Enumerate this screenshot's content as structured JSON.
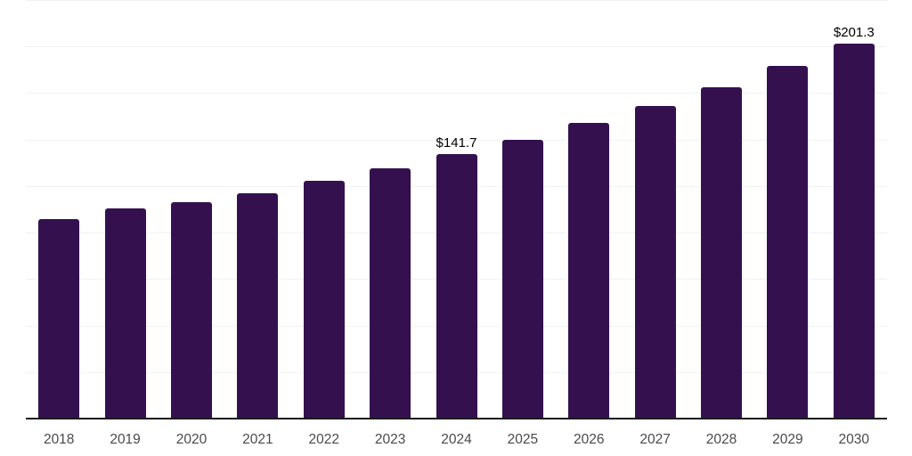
{
  "chart_data": {
    "type": "bar",
    "title": "",
    "xlabel": "",
    "ylabel": "",
    "categories": [
      "2018",
      "2019",
      "2020",
      "2021",
      "2022",
      "2023",
      "2024",
      "2025",
      "2026",
      "2027",
      "2028",
      "2029",
      "2030"
    ],
    "values": [
      106.8,
      112.5,
      116.0,
      120.7,
      127.3,
      134.0,
      141.7,
      149.4,
      158.4,
      167.5,
      177.6,
      189.1,
      201.3
    ],
    "data_labels": {
      "2024": "$141.7",
      "2030": "$201.3"
    },
    "ylim": [
      0,
      225
    ],
    "gridline_step": 25,
    "grid": "horizontal-only",
    "legend": "none",
    "colors": {
      "bar": "#34114E",
      "gridline": "#F2F2F2",
      "axis_line": "#1A1A1A",
      "tick_label": "#4A4A4A",
      "value_label": "#000000",
      "background": "#FFFFFF"
    }
  }
}
